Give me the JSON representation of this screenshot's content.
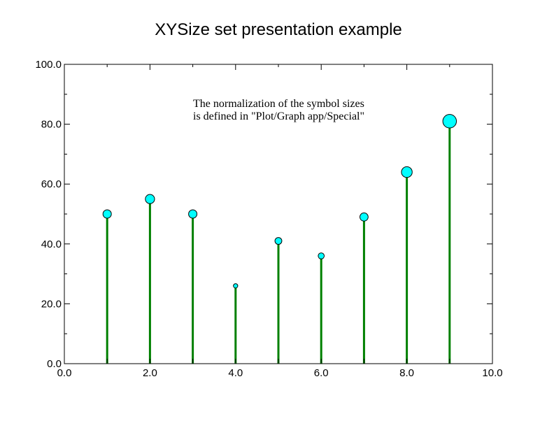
{
  "chart_data": {
    "type": "scatter",
    "title": "XYSize set presentation example",
    "xlabel": "",
    "ylabel": "",
    "xlim": [
      0,
      10
    ],
    "ylim": [
      0,
      100
    ],
    "x_ticks": [
      0,
      2,
      4,
      6,
      8,
      10
    ],
    "y_ticks": [
      0,
      20,
      40,
      60,
      80,
      100
    ],
    "x_tick_labels": [
      "0.0",
      "2.0",
      "4.0",
      "6.0",
      "8.0",
      "10.0"
    ],
    "y_tick_labels": [
      "0.0",
      "20.0",
      "40.0",
      "60.0",
      "80.0",
      "100.0"
    ],
    "grid": false,
    "annotation": [
      "The normalization of the symbol sizes",
      "is defined in \"Plot/Graph app/Special\""
    ],
    "series": [
      {
        "x": [
          1,
          2,
          3,
          4,
          5,
          6,
          7,
          8,
          9
        ],
        "y": [
          50,
          55,
          50,
          26,
          41,
          36,
          49,
          64,
          81
        ],
        "size": [
          0.5,
          0.55,
          0.5,
          0.26,
          0.41,
          0.36,
          0.49,
          0.64,
          0.81
        ]
      }
    ],
    "colors": {
      "marker_fill": "#00ffff",
      "marker_edge": "#000000",
      "drop_line": "#008000",
      "axes": "#000000"
    }
  }
}
